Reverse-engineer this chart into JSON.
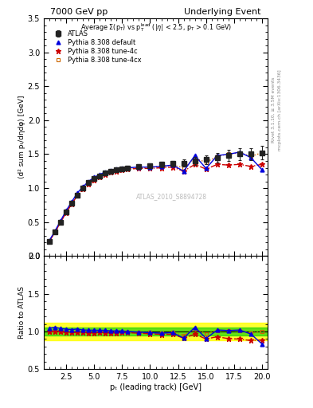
{
  "title_left": "7000 GeV pp",
  "title_right": "Underlying Event",
  "watermark": "ATLAS_2010_S8894728",
  "ylabel_main": "⟨d² sum pₜ/dηdφ⟩ [GeV]",
  "ylabel_ratio": "Ratio to ATLAS",
  "xlabel": "pₜ (leading track) [GeV]",
  "right_label": "mcplots.cern.ch [arXiv:1306.3436]",
  "right_label2": "Rivet 3.1.10, ≥ 3.5M events",
  "xlim": [
    0.5,
    20.5
  ],
  "ylim_main": [
    0.0,
    3.5
  ],
  "ylim_ratio": [
    0.5,
    2.0
  ],
  "yticks_main": [
    0.0,
    0.5,
    1.0,
    1.5,
    2.0,
    2.5,
    3.0,
    3.5
  ],
  "yticks_ratio": [
    0.5,
    1.0,
    1.5,
    2.0
  ],
  "atlas_x": [
    1.0,
    1.5,
    2.0,
    2.5,
    3.0,
    3.5,
    4.0,
    4.5,
    5.0,
    5.5,
    6.0,
    6.5,
    7.0,
    7.5,
    8.0,
    9.0,
    10.0,
    11.0,
    12.0,
    13.0,
    14.0,
    15.0,
    16.0,
    17.0,
    18.0,
    19.0,
    20.0
  ],
  "atlas_y": [
    0.22,
    0.35,
    0.5,
    0.65,
    0.78,
    0.9,
    1.0,
    1.08,
    1.14,
    1.18,
    1.22,
    1.25,
    1.27,
    1.28,
    1.3,
    1.32,
    1.33,
    1.35,
    1.36,
    1.37,
    1.4,
    1.42,
    1.45,
    1.48,
    1.5,
    1.5,
    1.52
  ],
  "atlas_yerr": [
    0.015,
    0.015,
    0.015,
    0.015,
    0.015,
    0.015,
    0.02,
    0.02,
    0.02,
    0.02,
    0.025,
    0.025,
    0.025,
    0.025,
    0.03,
    0.03,
    0.035,
    0.04,
    0.045,
    0.055,
    0.06,
    0.065,
    0.07,
    0.08,
    0.085,
    0.09,
    0.1
  ],
  "py_default_x": [
    1.0,
    1.5,
    2.0,
    2.5,
    3.0,
    3.5,
    4.0,
    4.5,
    5.0,
    5.5,
    6.0,
    6.5,
    7.0,
    7.5,
    8.0,
    9.0,
    10.0,
    11.0,
    12.0,
    13.0,
    14.0,
    15.0,
    16.0,
    17.0,
    18.0,
    19.0,
    20.0
  ],
  "py_default_y": [
    0.23,
    0.37,
    0.52,
    0.67,
    0.8,
    0.93,
    1.02,
    1.1,
    1.16,
    1.2,
    1.24,
    1.26,
    1.28,
    1.29,
    1.3,
    1.31,
    1.31,
    1.32,
    1.34,
    1.25,
    1.48,
    1.29,
    1.48,
    1.5,
    1.53,
    1.45,
    1.27
  ],
  "py_tune4c_x": [
    1.0,
    1.5,
    2.0,
    2.5,
    3.0,
    3.5,
    4.0,
    4.5,
    5.0,
    5.5,
    6.0,
    6.5,
    7.0,
    7.5,
    8.0,
    9.0,
    10.0,
    11.0,
    12.0,
    13.0,
    14.0,
    15.0,
    16.0,
    17.0,
    18.0,
    19.0,
    20.0
  ],
  "py_tune4c_y": [
    0.22,
    0.35,
    0.5,
    0.64,
    0.77,
    0.89,
    0.99,
    1.06,
    1.12,
    1.17,
    1.2,
    1.23,
    1.25,
    1.27,
    1.28,
    1.29,
    1.29,
    1.3,
    1.31,
    1.25,
    1.35,
    1.28,
    1.35,
    1.34,
    1.35,
    1.32,
    1.35
  ],
  "py_tune4cx_x": [
    1.0,
    1.5,
    2.0,
    2.5,
    3.0,
    3.5,
    4.0,
    4.5,
    5.0,
    5.5,
    6.0,
    6.5,
    7.0,
    7.5,
    8.0,
    9.0,
    10.0,
    11.0,
    12.0,
    13.0,
    14.0,
    15.0,
    16.0,
    17.0,
    18.0,
    19.0,
    20.0
  ],
  "py_tune4cx_y": [
    0.22,
    0.35,
    0.5,
    0.64,
    0.77,
    0.89,
    0.99,
    1.06,
    1.12,
    1.17,
    1.21,
    1.24,
    1.26,
    1.27,
    1.29,
    1.3,
    1.31,
    1.32,
    1.34,
    1.3,
    1.44,
    1.38,
    1.47,
    1.5,
    1.52,
    1.47,
    1.52
  ],
  "green_band": [
    0.95,
    1.05
  ],
  "yellow_band": [
    0.88,
    1.12
  ],
  "color_atlas": "#222222",
  "color_default": "#0000dd",
  "color_tune4c": "#cc0000",
  "color_tune4cx": "#cc6600",
  "bg_color": "#ffffff"
}
